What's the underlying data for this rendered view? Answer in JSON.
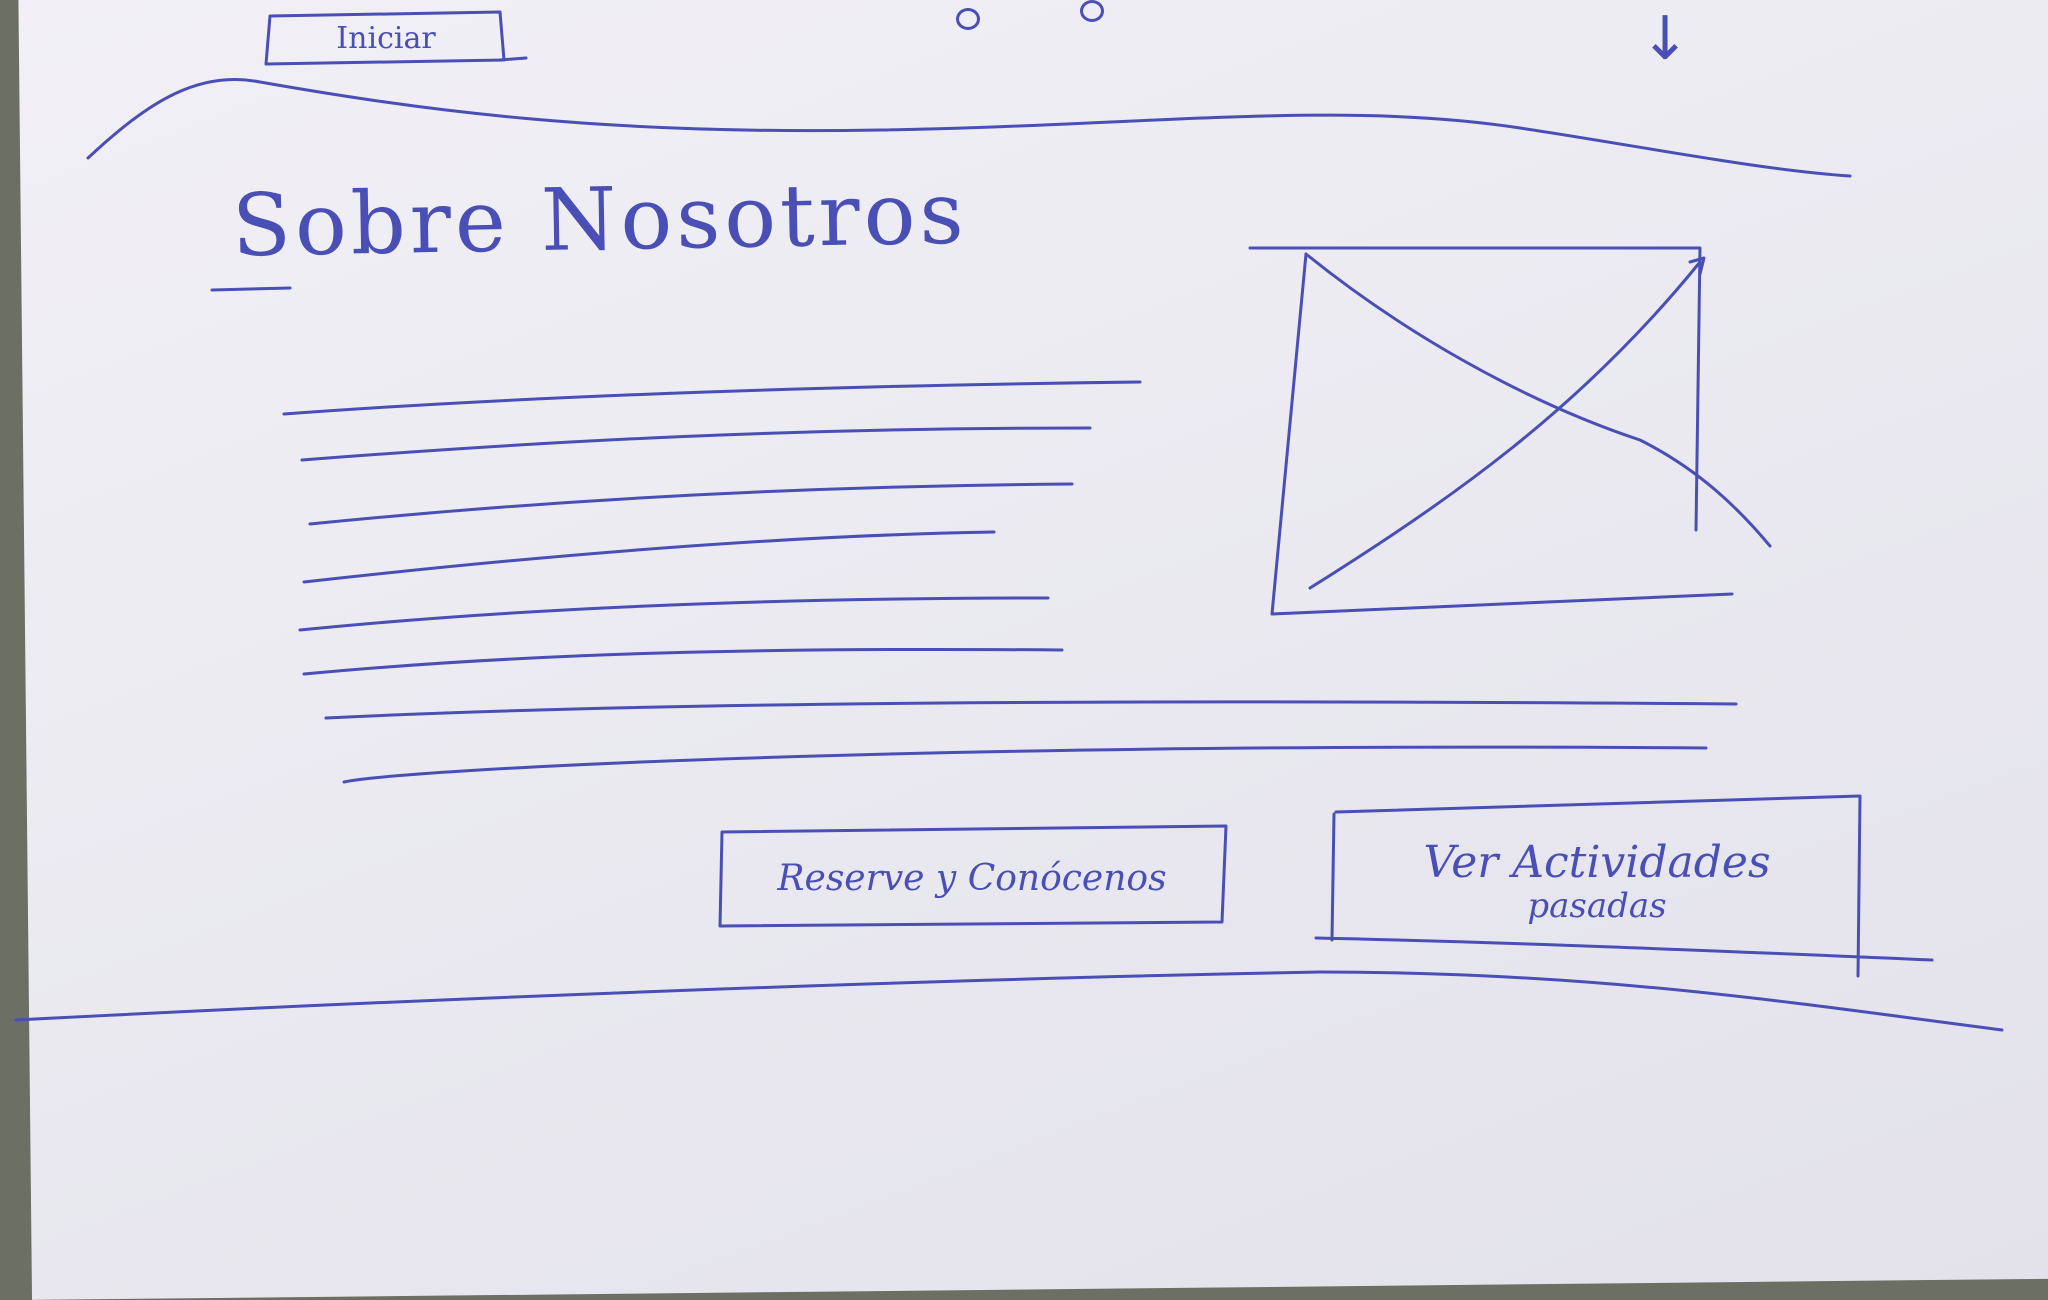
{
  "nav": {
    "login_label": "Iniciar",
    "menu_icon": "arrow-down-icon"
  },
  "hero": {
    "title": "Sobre Nosotros"
  },
  "actions": {
    "reserve_label": "Reserve y Conócenos",
    "activities_label_line1": "Ver Actividades",
    "activities_label_line2": "pasadas"
  },
  "colors": {
    "ink": "#4a4fb5",
    "paper": "#eeedf3"
  }
}
